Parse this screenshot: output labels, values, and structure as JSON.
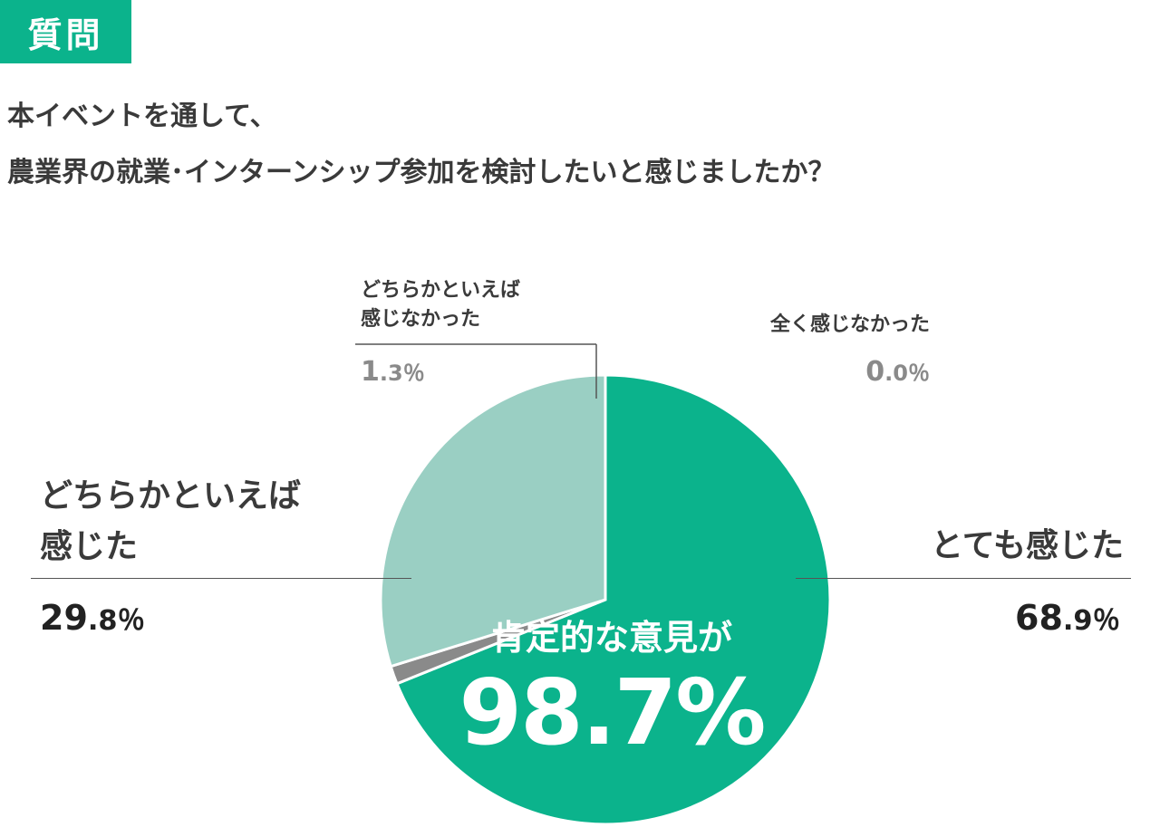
{
  "header": {
    "tag": "質問"
  },
  "question": {
    "line1": "本イベントを通して、",
    "line2": "農業界の就業･インターンシップ参加を検討したいと感じましたか？"
  },
  "center": {
    "caption": "肯定的な意見が",
    "value": "98.7%"
  },
  "colors": {
    "accent": "#0bb38c",
    "slice_very": "#0bb38c",
    "slice_somewhat": "#9acfc3",
    "slice_somewhat_not": "#8a8a8a",
    "slice_not_at_all": "#dddddd"
  },
  "chart_data": {
    "type": "pie",
    "start_angle_deg": 0,
    "direction": "clockwise",
    "slices": [
      {
        "key": "very",
        "label": "とても感じた",
        "value": 68.9,
        "int": "68",
        "dec": ".9",
        "unit": "％"
      },
      {
        "key": "not_at_all",
        "label": "全く感じなかった",
        "value": 0.0,
        "int": "0",
        "dec": ".0",
        "unit": "％"
      },
      {
        "key": "somewhat_not",
        "label_line1": "どちらかといえば",
        "label_line2": "感じなかった",
        "value": 1.3,
        "int": "1",
        "dec": ".3",
        "unit": "％"
      },
      {
        "key": "somewhat",
        "label_line1": "どちらかといえば",
        "label_line2": "感じた",
        "value": 29.8,
        "int": "29",
        "dec": ".8",
        "unit": "％"
      }
    ]
  }
}
